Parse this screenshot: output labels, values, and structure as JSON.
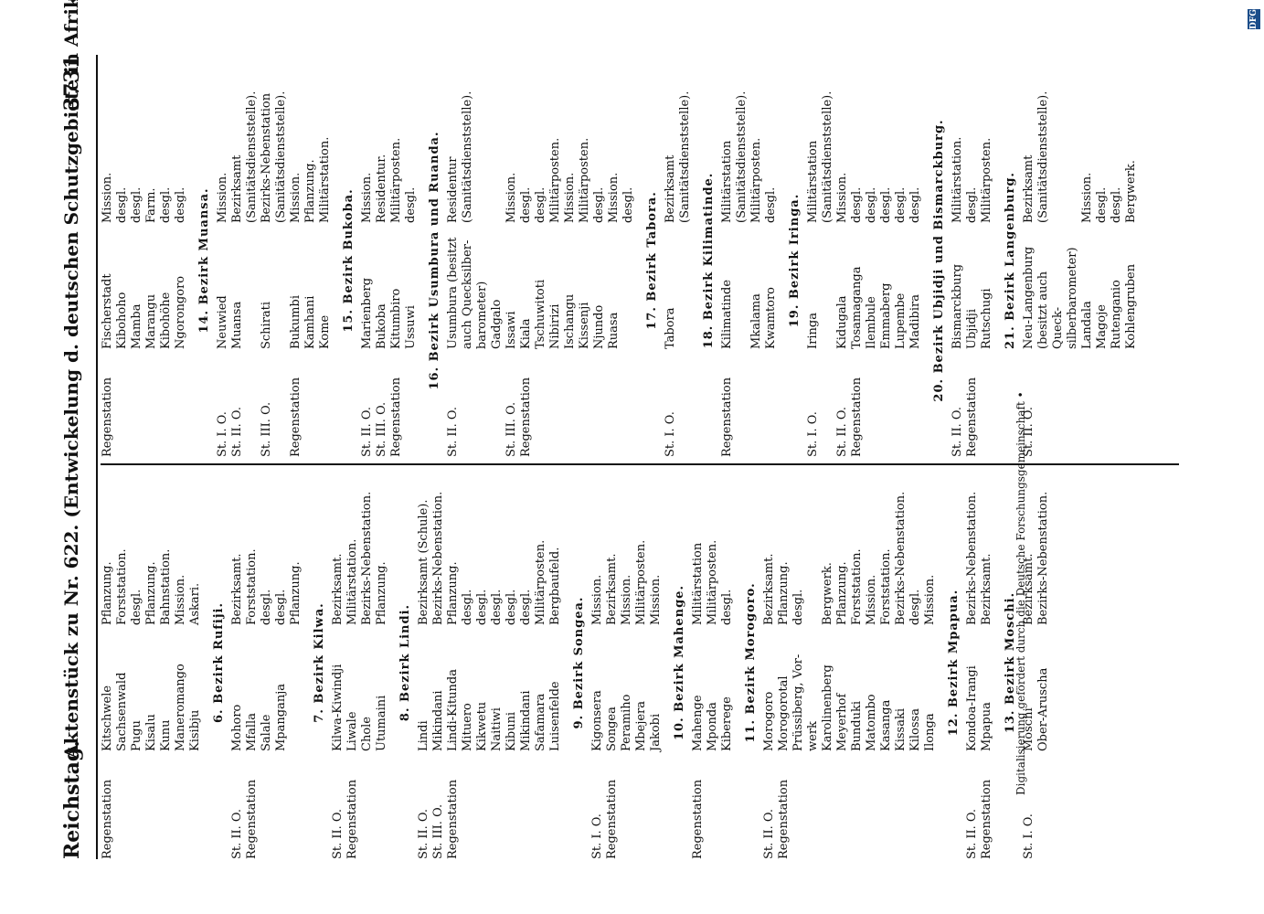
{
  "header": {
    "left": "Reichstag.",
    "center": "Aktenstück zu Nr. 622. (Entwickelung d. deutschen Schutzgebiete in Afrika u. d. Südsee. B.)",
    "right": "3731"
  },
  "left_column": [
    {
      "rows": [
        {
          "a": "Regenstation",
          "b": "Kitschwele\nSachsenwald\nPugu\nKisalu\nKunu\nManeromango\nKisibju",
          "c": "Pflanzung.\nForststation.\ndesgl.\nPflanzung.\nBahnstation.\nMission.\nAskari."
        }
      ]
    },
    {
      "title": "6. Bezirk Rufiji.",
      "rows": [
        {
          "a": "St. II. O.\nRegenstation",
          "b": "Mohoro\nMfalla\nSalale\nMpanganja",
          "c": "Bezirksamt.\nForststation.\ndesgl.\ndesgl.\nPflanzung."
        }
      ]
    },
    {
      "title": "7. Bezirk Kilwa.",
      "rows": [
        {
          "a": "St. II. O.\nRegenstation",
          "b": "Kilwa-Kiwindji\nLiwale\nChole\nUtumaini",
          "c": "Bezirksamt.\nMilitärstation.\nBezirks-Nebenstation.\nPflanzung."
        }
      ]
    },
    {
      "title": "8. Bezirk Lindi.",
      "rows": [
        {
          "a": "St. II. O.\nSt. III. O.\nRegenstation",
          "b": "Lindi\nMikindani\nLindi-Kitunda\nMituero\nKikwetu\nNaitiwi\nKibuni\nMikindani\nSafamara\nLuisenfelde",
          "c": "Bezirksamt (Schule).\nBezirks-Nebenstation.\nPflanzung.\ndesgl.\ndesgl.\ndesgl.\ndesgl.\ndesgl.\nMilitärposten.\nBergbaufeld."
        }
      ]
    },
    {
      "title": "9. Bezirk Songea.",
      "rows": [
        {
          "a": "St. I. O.\nRegenstation",
          "b": "Kigonsera\nSongea\nPeramiho\nMbejera\nJakobi",
          "c": "Mission.\nBezirksamt.\nMission.\nMilitärposten.\nMission."
        }
      ]
    },
    {
      "title": "10. Bezirk Mahenge.",
      "rows": [
        {
          "a": "Regenstation",
          "b": "Mahenge\nMponda\nKiberege",
          "c": "Militärstation\nMilitärposten.\ndesgl."
        }
      ]
    },
    {
      "title": "11. Bezirk Morogoro.",
      "rows": [
        {
          "a": "St. II. O.\nRegenstation",
          "b": "Morogoro\nMorogorotal\nPrüssiberg, Vor-\nwerk\nKarolinenberg\nMeyerhof\nBunduki\nMatombo\nKasanga\nKissaki\nKilossa\nIlonga",
          "c": "Bezirksamt.\nPflanzung.\ndesgl.\n\nBergwerk.\nPflanzung.\nForststation.\nMission.\nForststation.\nBezirks-Nebenstation.\ndesgl.\nMission."
        }
      ]
    },
    {
      "title": "12. Bezirk Mpapua.",
      "rows": [
        {
          "a": "St. II. O.\nRegenstation",
          "b": "Kondoa-Irangi\nMpapua",
          "c": "Bezirks-Nebenstation.\nBezirksamt."
        }
      ]
    },
    {
      "title": "13. Bezirk Moschi.",
      "rows": [
        {
          "a": "St. I. O.",
          "b": "Moschi\nOber-Aruscha",
          "c": "Bezirksamt.\nBezirks-Nebenstation."
        }
      ]
    }
  ],
  "right_column": [
    {
      "rows": [
        {
          "a": "Regenstation",
          "b": "Fischerstadt\nKibohoho\nMamba\nMarangu\nKibohöhe\nNgorongoro",
          "c": "Mission.\ndesgl.\ndesgl.\nFarm.\ndesgl.\ndesgl."
        }
      ]
    },
    {
      "title": "14. Bezirk Muansa.",
      "rows": [
        {
          "a": "St. I. O.\nSt. II. O.\n\nSt. III. O.\n\nRegenstation",
          "b": "Neuwied\nMuansa\n\nSchirati\n\nBukumbi\nKamhani\nKome",
          "c": "Mission.\nBezirksamt (Sanitätsdienststelle).\nBezirks-Nebenstation\n(Sanitätsdienststelle).\nMission.\nPflanzung.\nMilitärstation."
        }
      ]
    },
    {
      "title": "15. Bezirk Bukoba.",
      "rows": [
        {
          "a": "St. II. O.\nSt. III. O.\nRegenstation",
          "b": "Marienberg\nBukoba\nKitumbiro\nUssuwi",
          "c": "Mission.\nResidentur.\nMilitärposten.\ndesgl."
        }
      ]
    },
    {
      "title": "16. Bezirk Usumbura und Ruanda.",
      "rows": [
        {
          "a": "St. II. O.\n\n\n\nSt. III. O.\nRegenstation",
          "b": "Usumbura (besitzt auch Quecksilber-\nbarometer)\nGadgalo\nIssawi\nKiala\nTschuwitoti\nNibirizi\nIschangu\nKissenji\nNjundo\nRuasa",
          "c": "Residentur (Sanitätsdienststelle).\n\n\nMission.\ndesgl.\ndesgl.\nMilitärposten.\nMission.\nMilitärposten.\ndesgl.\nMission.\ndesgl."
        }
      ]
    },
    {
      "title": "17. Bezirk Tabora.",
      "rows": [
        {
          "a": "St. I. O.",
          "b": "Tabora",
          "c": "Bezirksamt (Sanitätsdienststelle)."
        }
      ]
    },
    {
      "title": "18. Bezirk Kilimatinde.",
      "rows": [
        {
          "a": "Regenstation",
          "b": "Kilimatinde\n\nMkalama\nKwamtoro",
          "c": "Militärstation (Sanitätsdienststelle).\nMilitärposten.\ndesgl."
        }
      ]
    },
    {
      "title": "19. Bezirk Iringa.",
      "rows": [
        {
          "a": "St. I. O.\n\nSt. II. O.\nRegenstation",
          "b": "Iringa\n\nKidugala\nTosamaganga\nIlembule\nEmmaberg\nLupembe\nMadibira",
          "c": "Militärstation (Sanitätsdienststelle).\nMission.\ndesgl.\ndesgl.\ndesgl.\ndesgl.\ndesgl."
        }
      ]
    },
    {
      "title": "20. Bezirk Ubjidji und Bismarckburg.",
      "rows": [
        {
          "a": "St. II. O.\nRegenstation",
          "b": "Bismarckburg\nUbjidji\nRutschugi",
          "c": "Militärstation.\ndesgl.\nMilitärposten."
        }
      ]
    },
    {
      "title": "21. Bezirk Langenburg.",
      "rows": [
        {
          "a": "St. II. O.",
          "b": "Neu-Langenburg\n(besitzt auch Queck-\nsilberbarometer)\nLandala\nMagoje\nRutenganio\nKohlengruben",
          "c": "Bezirksamt (Sanitätsdienststelle).\n\n\nMission.\ndesgl.\ndesgl.\nBergwerk."
        }
      ]
    }
  ],
  "credit": "Digitalisierung gefördert durch die Deutsche Forschungsgemeinschaft •",
  "badge": "DFG"
}
